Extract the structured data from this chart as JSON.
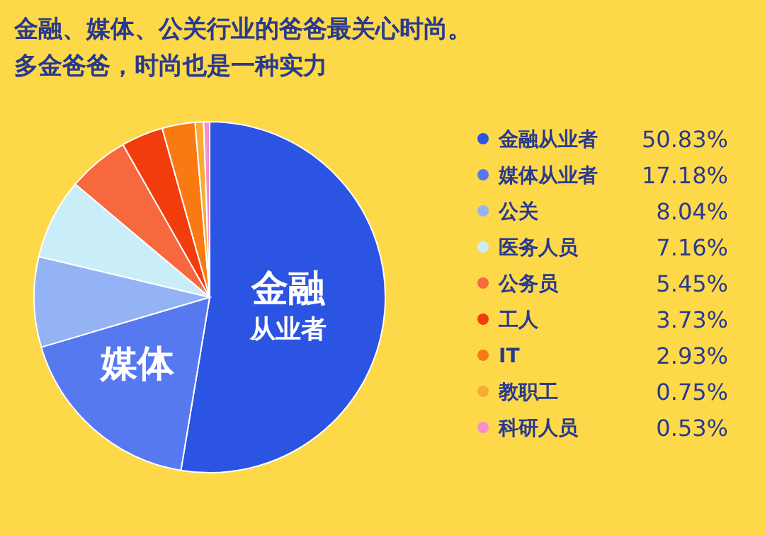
{
  "chart_data": {
    "type": "pie",
    "title": "金融、媒体、公关行业的爸爸最关心时尚。",
    "subtitle": "多金爸爸，时尚也是一种实力",
    "categories": [
      "金融从业者",
      "媒体从业者",
      "公关",
      "医务人员",
      "公务员",
      "工人",
      "IT",
      "教职工",
      "科研人员"
    ],
    "values": [
      50.83,
      17.18,
      8.04,
      7.16,
      5.45,
      3.73,
      2.93,
      0.75,
      0.53
    ],
    "value_labels": [
      "50.83%",
      "17.18%",
      "8.04%",
      "7.16%",
      "5.45%",
      "3.73%",
      "2.93%",
      "0.75%",
      "0.53%"
    ],
    "colors": [
      "#2c54e3",
      "#5679f0",
      "#93b3f5",
      "#c9eefa",
      "#f8683e",
      "#f23c0c",
      "#f97a12",
      "#f8ab32",
      "#f590c8"
    ],
    "annotations": [
      {
        "text": "金融",
        "x": "金融从业者"
      },
      {
        "text": "从业者",
        "x": "金融从业者"
      },
      {
        "text": "媒体",
        "x": "媒体从业者"
      }
    ],
    "legend": "right"
  }
}
